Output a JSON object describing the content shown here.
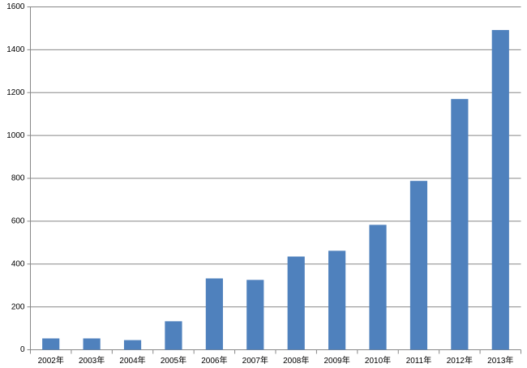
{
  "chart_data": {
    "type": "bar",
    "categories": [
      "2002年",
      "2003年",
      "2004年",
      "2005年",
      "2006年",
      "2007年",
      "2008年",
      "2009年",
      "2010年",
      "2011年",
      "2012年",
      "2013年"
    ],
    "values": [
      53,
      53,
      45,
      133,
      333,
      326,
      435,
      462,
      583,
      788,
      1170,
      1492
    ],
    "color": "#4f81bd",
    "ylim": [
      0,
      1600
    ],
    "yticks": [
      0,
      200,
      400,
      600,
      800,
      1000,
      1200,
      1400,
      1600
    ],
    "grid": true
  }
}
